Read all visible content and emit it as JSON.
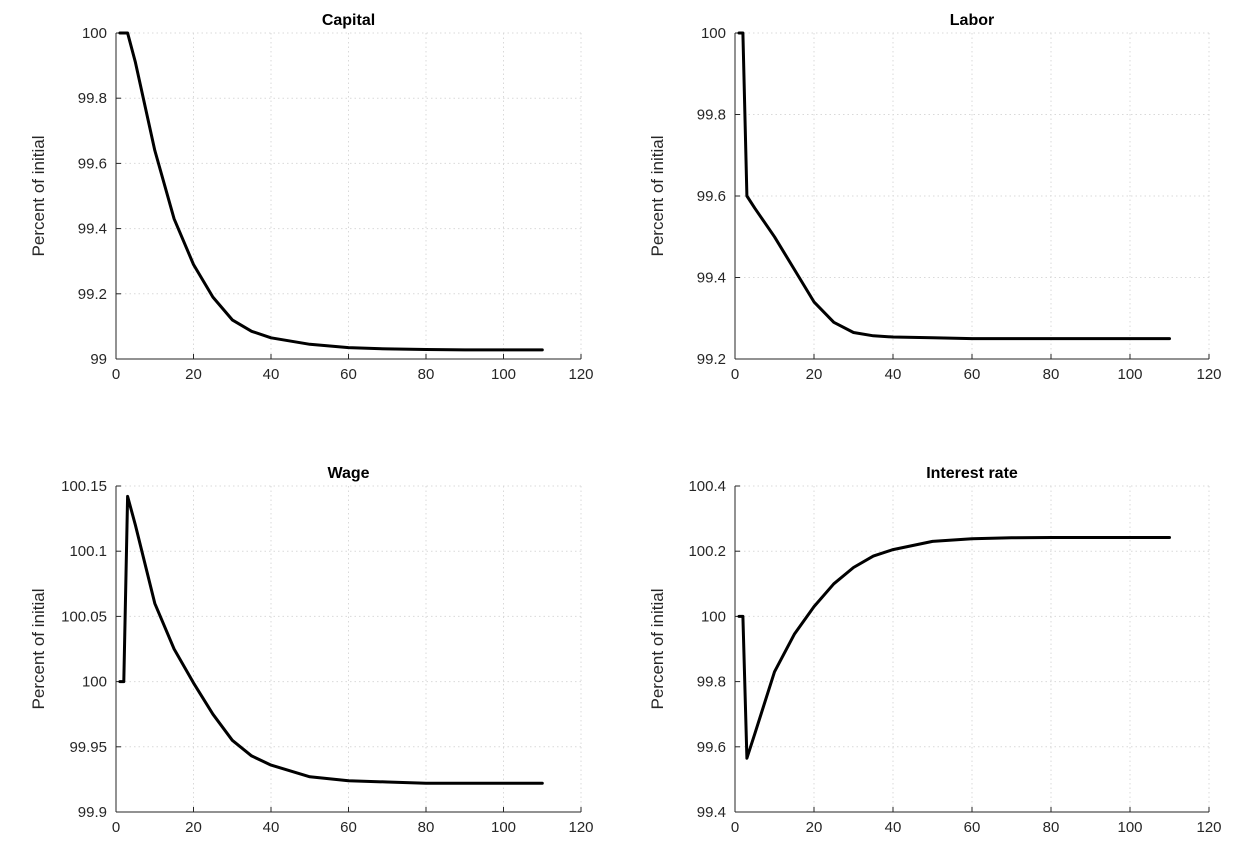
{
  "colors": {
    "line": "#000000",
    "grid": "#d9d9d9",
    "axis": "#262626",
    "background": "#ffffff"
  },
  "chart_data": [
    {
      "type": "line",
      "title": "Capital",
      "xlabel": "",
      "ylabel": "Percent of initial",
      "xlim": [
        0,
        120
      ],
      "ylim": [
        99,
        100
      ],
      "xticks": [
        0,
        20,
        40,
        60,
        80,
        100,
        120
      ],
      "yticks": [
        99,
        99.2,
        99.4,
        99.6,
        99.8,
        100
      ],
      "ytick_labels": [
        "99",
        "99.2",
        "99.4",
        "99.6",
        "99.8",
        "100"
      ],
      "grid": true,
      "series": [
        {
          "x": [
            1,
            2,
            3,
            5,
            10,
            15,
            20,
            25,
            30,
            35,
            40,
            50,
            60,
            70,
            80,
            90,
            100,
            110
          ],
          "y": [
            100,
            100,
            100,
            99.91,
            99.64,
            99.43,
            99.29,
            99.19,
            99.12,
            99.085,
            99.065,
            99.045,
            99.035,
            99.031,
            99.029,
            99.028,
            99.028,
            99.028
          ]
        }
      ]
    },
    {
      "type": "line",
      "title": "Labor",
      "xlabel": "",
      "ylabel": "Percent of initial",
      "xlim": [
        0,
        120
      ],
      "ylim": [
        99.2,
        100
      ],
      "xticks": [
        0,
        20,
        40,
        60,
        80,
        100,
        120
      ],
      "yticks": [
        99.2,
        99.4,
        99.6,
        99.8,
        100
      ],
      "ytick_labels": [
        "99.2",
        "99.4",
        "99.6",
        "99.8",
        "100"
      ],
      "grid": true,
      "series": [
        {
          "x": [
            1,
            2,
            3,
            5,
            10,
            15,
            20,
            25,
            30,
            35,
            40,
            50,
            60,
            70,
            80,
            90,
            100,
            110
          ],
          "y": [
            100,
            100,
            99.6,
            99.57,
            99.5,
            99.42,
            99.34,
            99.29,
            99.265,
            99.257,
            99.254,
            99.252,
            99.25,
            99.25,
            99.25,
            99.25,
            99.25,
            99.25
          ]
        }
      ]
    },
    {
      "type": "line",
      "title": "Wage",
      "xlabel": "",
      "ylabel": "Percent of initial",
      "xlim": [
        0,
        120
      ],
      "ylim": [
        99.9,
        100.15
      ],
      "xticks": [
        0,
        20,
        40,
        60,
        80,
        100,
        120
      ],
      "yticks": [
        99.9,
        99.95,
        100,
        100.05,
        100.1,
        100.15
      ],
      "ytick_labels": [
        "99.9",
        "99.95",
        "100",
        "100.05",
        "100.1",
        "100.15"
      ],
      "grid": true,
      "series": [
        {
          "x": [
            1,
            2,
            3,
            5,
            10,
            15,
            20,
            25,
            30,
            35,
            40,
            50,
            60,
            70,
            80,
            90,
            100,
            110
          ],
          "y": [
            100,
            100,
            100.142,
            100.12,
            100.06,
            100.025,
            99.999,
            99.975,
            99.955,
            99.943,
            99.936,
            99.927,
            99.924,
            99.923,
            99.922,
            99.922,
            99.922,
            99.922
          ]
        }
      ]
    },
    {
      "type": "line",
      "title": "Interest rate",
      "xlabel": "",
      "ylabel": "Percent of initial",
      "xlim": [
        0,
        120
      ],
      "ylim": [
        99.4,
        100.4
      ],
      "xticks": [
        0,
        20,
        40,
        60,
        80,
        100,
        120
      ],
      "yticks": [
        99.4,
        99.6,
        99.8,
        100,
        100.2,
        100.4
      ],
      "ytick_labels": [
        "99.4",
        "99.6",
        "99.8",
        "100",
        "100.2",
        "100.4"
      ],
      "grid": true,
      "series": [
        {
          "x": [
            1,
            2,
            3,
            5,
            10,
            15,
            20,
            25,
            30,
            35,
            40,
            50,
            60,
            70,
            80,
            90,
            100,
            110
          ],
          "y": [
            100,
            100,
            99.565,
            99.64,
            99.83,
            99.945,
            100.03,
            100.1,
            100.15,
            100.185,
            100.205,
            100.23,
            100.238,
            100.241,
            100.242,
            100.242,
            100.242,
            100.242
          ]
        }
      ]
    }
  ]
}
